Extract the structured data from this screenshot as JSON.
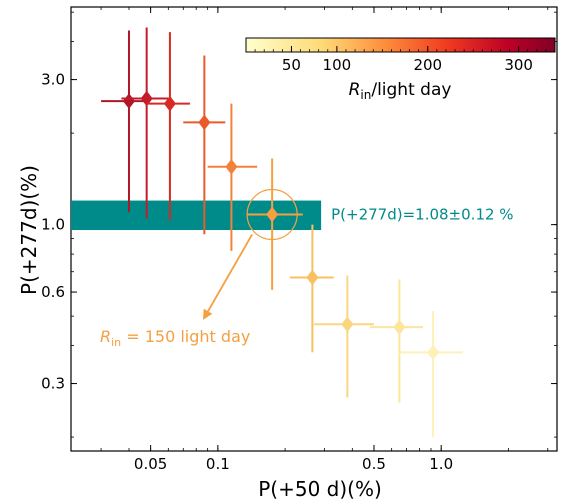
{
  "chart_data": {
    "type": "scatter",
    "xlabel": "P(+50 d)(%)",
    "ylabel": "P(+277d)(%)",
    "x_scale": "log",
    "y_scale": "log",
    "xlim": [
      0.022,
      3.3
    ],
    "ylim": [
      0.18,
      5.2
    ],
    "xticks": [
      {
        "value": 0.05,
        "label": "0.05"
      },
      {
        "value": 0.1,
        "label": "0.1"
      },
      {
        "value": 0.5,
        "label": "0.5"
      },
      {
        "value": 1.0,
        "label": "1.0"
      }
    ],
    "yticks": [
      {
        "value": 0.3,
        "label": "0.3"
      },
      {
        "value": 0.6,
        "label": "0.6"
      },
      {
        "value": 1.0,
        "label": "1.0"
      },
      {
        "value": 3.0,
        "label": "3.0"
      }
    ],
    "colorbar": {
      "label": "Rin/light day",
      "label_main": "R",
      "label_sub": "in",
      "label_rest": "/light day",
      "range": [
        0,
        340
      ],
      "ticks": [
        {
          "value": 50,
          "label": "50"
        },
        {
          "value": 100,
          "label": "100"
        },
        {
          "value": 200,
          "label": "200"
        },
        {
          "value": 300,
          "label": "300"
        }
      ]
    },
    "band": {
      "x_range": [
        0.022,
        0.29
      ],
      "y_center": 1.08,
      "y_err": 0.12,
      "label": "P(+277d)=1.08±0.12 %",
      "color": "#008b8b"
    },
    "highlight": {
      "x": 0.175,
      "y": 1.08,
      "label_main": "R",
      "label_sub": "in",
      "label_rest": " = 150 light day",
      "color": "#f5a040"
    },
    "points": [
      {
        "x": 0.04,
        "x_lo": 0.03,
        "x_hi": 0.048,
        "y": 2.55,
        "y_lo": 1.1,
        "y_hi": 4.35,
        "color": "#b0182a"
      },
      {
        "x": 0.048,
        "x_lo": 0.037,
        "x_hi": 0.06,
        "y": 2.6,
        "y_lo": 1.05,
        "y_hi": 4.45,
        "color": "#c41d2a"
      },
      {
        "x": 0.061,
        "x_lo": 0.048,
        "x_hi": 0.075,
        "y": 2.5,
        "y_lo": 1.03,
        "y_hi": 4.3,
        "color": "#d72a22"
      },
      {
        "x": 0.087,
        "x_lo": 0.07,
        "x_hi": 0.108,
        "y": 2.17,
        "y_lo": 0.93,
        "y_hi": 3.6,
        "color": "#ea5a2a"
      },
      {
        "x": 0.115,
        "x_lo": 0.09,
        "x_hi": 0.15,
        "y": 1.55,
        "y_lo": 0.82,
        "y_hi": 2.5,
        "color": "#f2823a"
      },
      {
        "x": 0.175,
        "x_lo": 0.135,
        "x_hi": 0.24,
        "y": 1.08,
        "y_lo": 0.61,
        "y_hi": 1.65,
        "color": "#f5a040"
      },
      {
        "x": 0.265,
        "x_lo": 0.21,
        "x_hi": 0.33,
        "y": 0.67,
        "y_lo": 0.38,
        "y_hi": 1.0,
        "color": "#f8c060"
      },
      {
        "x": 0.38,
        "x_lo": 0.27,
        "x_hi": 0.5,
        "y": 0.47,
        "y_lo": 0.27,
        "y_hi": 0.68,
        "color": "#fad680"
      },
      {
        "x": 0.65,
        "x_lo": 0.48,
        "x_hi": 0.83,
        "y": 0.46,
        "y_lo": 0.26,
        "y_hi": 0.66,
        "color": "#fce59c"
      },
      {
        "x": 0.92,
        "x_lo": 0.64,
        "x_hi": 1.25,
        "y": 0.38,
        "y_lo": 0.2,
        "y_hi": 0.52,
        "color": "#fdf0b8"
      }
    ]
  }
}
